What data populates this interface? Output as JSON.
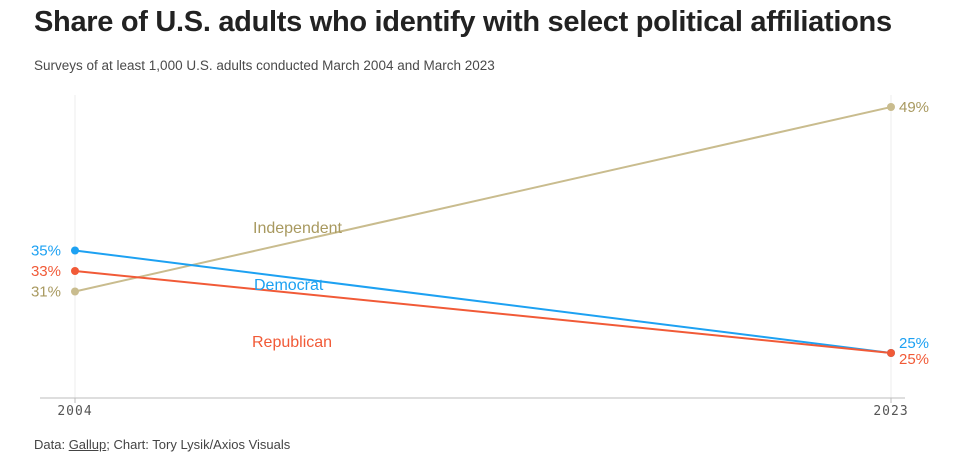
{
  "header": {
    "title": "Share of U.S. adults who identify with select political affiliations",
    "subtitle": "Surveys of at least 1,000 U.S. adults conducted March 2004 and March 2023"
  },
  "footer": {
    "prefix": "Data: ",
    "source": "Gallup",
    "suffix": "; Chart: Tory Lysik/Axios Visuals"
  },
  "chart_data": {
    "type": "line",
    "title": "Share of U.S. adults who identify with select political affiliations",
    "x": [
      "2004",
      "2023"
    ],
    "ylim": [
      21,
      49
    ],
    "series": [
      {
        "name": "Independent",
        "values": [
          31,
          49
        ],
        "labels": [
          "31%",
          "49%"
        ],
        "color": "#c9bc8e",
        "label_color": "#a8995f"
      },
      {
        "name": "Democrat",
        "values": [
          35,
          25
        ],
        "labels": [
          "35%",
          "25%"
        ],
        "color": "#1da1f2",
        "label_color": "#1da1f2"
      },
      {
        "name": "Republican",
        "values": [
          33,
          25
        ],
        "labels": [
          "33%",
          "25%"
        ],
        "color": "#f15a37",
        "label_color": "#f15a37"
      }
    ]
  }
}
